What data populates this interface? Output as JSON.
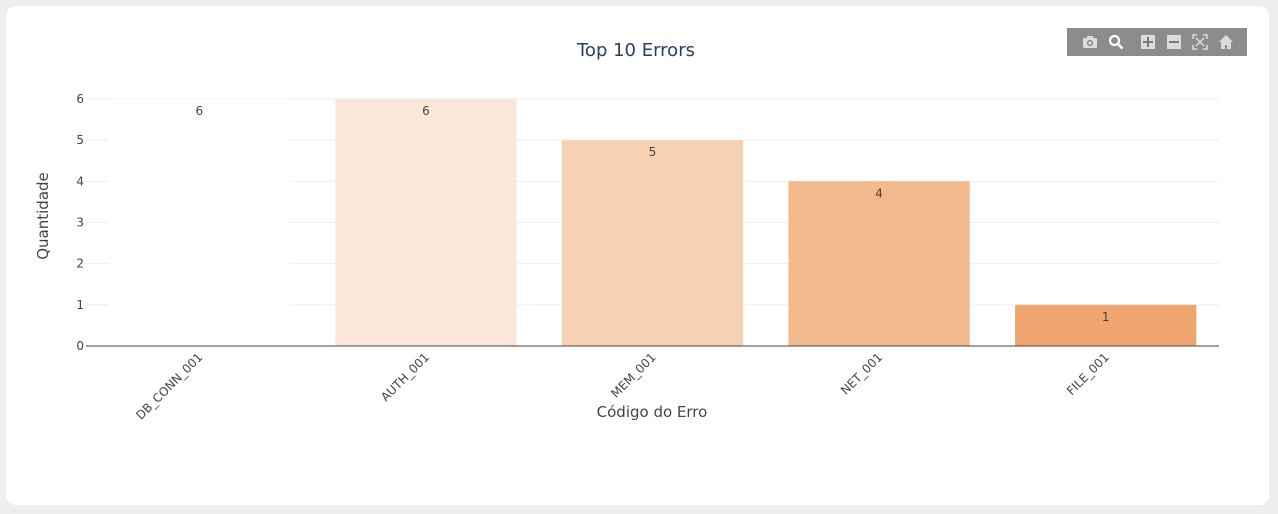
{
  "modebar": {
    "icons": [
      "camera-icon",
      "zoom-icon",
      "zoom-in-icon",
      "zoom-out-icon",
      "autoscale-icon",
      "home-icon"
    ]
  },
  "colors": {
    "axis": "#444444",
    "grid": "#eeeeee",
    "text": "#444444",
    "title": "#2a3f5f"
  },
  "chart_data": {
    "type": "bar",
    "title": "Top 10 Errors",
    "xlabel": "Código do Erro",
    "ylabel": "Quantidade",
    "categories": [
      "DB_CONN_001",
      "AUTH_001",
      "MEM_001",
      "NET_001",
      "FILE_001"
    ],
    "values": [
      6,
      6,
      5,
      4,
      1
    ],
    "bar_colors": [
      "#ffffff",
      "#fbe7da",
      "#f8d1b3",
      "#f2b98c",
      "#f1a56e"
    ],
    "ylim": [
      0,
      6
    ],
    "yticks": [
      0,
      1,
      2,
      3,
      4,
      5,
      6
    ],
    "grid": true,
    "data_labels": [
      "6",
      "6",
      "5",
      "4",
      "1"
    ]
  }
}
